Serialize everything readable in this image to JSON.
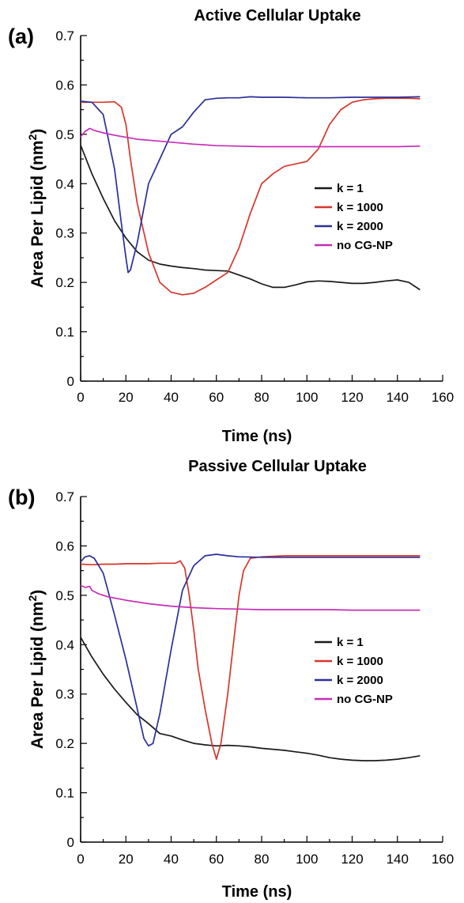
{
  "chart_data": [
    {
      "type": "line",
      "panel_label": "(a)",
      "title": "Active Cellular Uptake",
      "xlabel": "Time (ns)",
      "ylabel_main": "Area Per Lipid (nm",
      "ylabel_sup": "2",
      "ylabel_end": ")",
      "xlim": [
        0,
        160
      ],
      "ylim": [
        0,
        0.7
      ],
      "xticks": [
        "0",
        "20",
        "40",
        "60",
        "80",
        "100",
        "120",
        "140",
        "160"
      ],
      "yticks": [
        "0",
        "0.1",
        "0.2",
        "0.3",
        "0.4",
        "0.5",
        "0.6",
        "0.7"
      ],
      "grid": false,
      "legend_position": "right",
      "series": [
        {
          "name": "k = 1",
          "color": "#1a1a1a",
          "x": [
            0,
            5,
            10,
            15,
            20,
            25,
            30,
            35,
            40,
            45,
            50,
            55,
            60,
            65,
            70,
            75,
            80,
            85,
            90,
            95,
            100,
            105,
            110,
            115,
            120,
            125,
            130,
            135,
            140,
            145,
            150
          ],
          "y": [
            0.478,
            0.42,
            0.37,
            0.325,
            0.29,
            0.262,
            0.245,
            0.237,
            0.233,
            0.23,
            0.228,
            0.225,
            0.224,
            0.223,
            0.215,
            0.207,
            0.197,
            0.19,
            0.19,
            0.195,
            0.201,
            0.203,
            0.202,
            0.2,
            0.198,
            0.198,
            0.2,
            0.203,
            0.205,
            0.2,
            0.185
          ]
        },
        {
          "name": "k = 1000",
          "color": "#d8352a",
          "x": [
            0,
            5,
            10,
            15,
            18,
            20,
            22,
            25,
            30,
            35,
            40,
            45,
            50,
            55,
            60,
            65,
            70,
            75,
            80,
            85,
            90,
            95,
            100,
            105,
            110,
            115,
            120,
            125,
            130,
            135,
            140,
            145,
            150
          ],
          "y": [
            0.565,
            0.565,
            0.565,
            0.566,
            0.555,
            0.52,
            0.45,
            0.36,
            0.26,
            0.2,
            0.18,
            0.175,
            0.178,
            0.19,
            0.205,
            0.22,
            0.27,
            0.34,
            0.4,
            0.42,
            0.435,
            0.44,
            0.445,
            0.47,
            0.52,
            0.55,
            0.565,
            0.57,
            0.572,
            0.573,
            0.573,
            0.573,
            0.572
          ]
        },
        {
          "name": "k = 2000",
          "color": "#2a2f9a",
          "x": [
            0,
            5,
            10,
            15,
            18,
            20,
            21,
            22,
            25,
            30,
            35,
            40,
            45,
            50,
            55,
            60,
            65,
            70,
            75,
            80,
            90,
            100,
            110,
            120,
            130,
            140,
            150
          ],
          "y": [
            0.567,
            0.565,
            0.54,
            0.43,
            0.32,
            0.25,
            0.22,
            0.225,
            0.28,
            0.4,
            0.45,
            0.5,
            0.515,
            0.545,
            0.57,
            0.573,
            0.574,
            0.574,
            0.576,
            0.575,
            0.575,
            0.574,
            0.574,
            0.575,
            0.575,
            0.575,
            0.576
          ]
        },
        {
          "name": "no CG-NP",
          "color": "#c62db8",
          "x": [
            0,
            2,
            4,
            6,
            10,
            15,
            20,
            25,
            30,
            40,
            50,
            60,
            70,
            80,
            90,
            100,
            110,
            120,
            130,
            140,
            150
          ],
          "y": [
            0.495,
            0.506,
            0.512,
            0.508,
            0.503,
            0.498,
            0.494,
            0.49,
            0.488,
            0.484,
            0.48,
            0.477,
            0.476,
            0.475,
            0.475,
            0.475,
            0.475,
            0.475,
            0.475,
            0.475,
            0.476
          ]
        }
      ]
    },
    {
      "type": "line",
      "panel_label": "(b)",
      "title": "Passive Cellular Uptake",
      "xlabel": "Time (ns)",
      "ylabel_main": "Area Per Lipid (nm",
      "ylabel_sup": "2",
      "ylabel_end": ")",
      "xlim": [
        0,
        160
      ],
      "ylim": [
        0,
        0.7
      ],
      "xticks": [
        "0",
        "20",
        "40",
        "60",
        "80",
        "100",
        "120",
        "140",
        "160"
      ],
      "yticks": [
        "0",
        "0.1",
        "0.2",
        "0.3",
        "0.4",
        "0.5",
        "0.6",
        "0.7"
      ],
      "grid": false,
      "legend_position": "right",
      "series": [
        {
          "name": "k = 1",
          "color": "#1a1a1a",
          "x": [
            0,
            5,
            10,
            15,
            20,
            25,
            30,
            35,
            40,
            45,
            50,
            55,
            60,
            65,
            70,
            75,
            80,
            85,
            90,
            95,
            100,
            105,
            110,
            115,
            120,
            125,
            130,
            135,
            140,
            145,
            150
          ],
          "y": [
            0.415,
            0.375,
            0.34,
            0.31,
            0.283,
            0.258,
            0.24,
            0.22,
            0.215,
            0.207,
            0.2,
            0.197,
            0.195,
            0.196,
            0.195,
            0.193,
            0.19,
            0.188,
            0.186,
            0.183,
            0.18,
            0.176,
            0.171,
            0.168,
            0.166,
            0.165,
            0.165,
            0.166,
            0.168,
            0.171,
            0.175
          ]
        },
        {
          "name": "k = 1000",
          "color": "#d8352a",
          "x": [
            0,
            5,
            10,
            15,
            20,
            25,
            30,
            35,
            40,
            42,
            44,
            46,
            48,
            50,
            52,
            55,
            58,
            60,
            62,
            65,
            68,
            70,
            72,
            75,
            80,
            90,
            100,
            110,
            120,
            130,
            140,
            150
          ],
          "y": [
            0.563,
            0.562,
            0.563,
            0.563,
            0.564,
            0.564,
            0.564,
            0.565,
            0.565,
            0.565,
            0.57,
            0.555,
            0.5,
            0.43,
            0.35,
            0.27,
            0.2,
            0.168,
            0.2,
            0.3,
            0.42,
            0.5,
            0.55,
            0.575,
            0.578,
            0.58,
            0.58,
            0.58,
            0.58,
            0.58,
            0.58,
            0.58
          ]
        },
        {
          "name": "k = 2000",
          "color": "#2a2f9a",
          "x": [
            0,
            2,
            4,
            6,
            10,
            15,
            20,
            25,
            28,
            30,
            32,
            35,
            40,
            45,
            50,
            55,
            60,
            65,
            70,
            80,
            90,
            100,
            110,
            120,
            130,
            140,
            150
          ],
          "y": [
            0.568,
            0.578,
            0.58,
            0.575,
            0.545,
            0.46,
            0.37,
            0.27,
            0.21,
            0.195,
            0.2,
            0.26,
            0.39,
            0.51,
            0.56,
            0.58,
            0.583,
            0.58,
            0.578,
            0.577,
            0.577,
            0.577,
            0.577,
            0.577,
            0.577,
            0.577,
            0.577
          ]
        },
        {
          "name": "no CG-NP",
          "color": "#c62db8",
          "x": [
            0,
            2,
            4,
            5,
            8,
            12,
            20,
            30,
            40,
            50,
            60,
            70,
            80,
            90,
            100,
            110,
            120,
            130,
            140,
            150
          ],
          "y": [
            0.52,
            0.516,
            0.518,
            0.51,
            0.503,
            0.497,
            0.49,
            0.483,
            0.478,
            0.475,
            0.473,
            0.472,
            0.471,
            0.471,
            0.471,
            0.471,
            0.47,
            0.47,
            0.47,
            0.47
          ]
        }
      ]
    }
  ]
}
